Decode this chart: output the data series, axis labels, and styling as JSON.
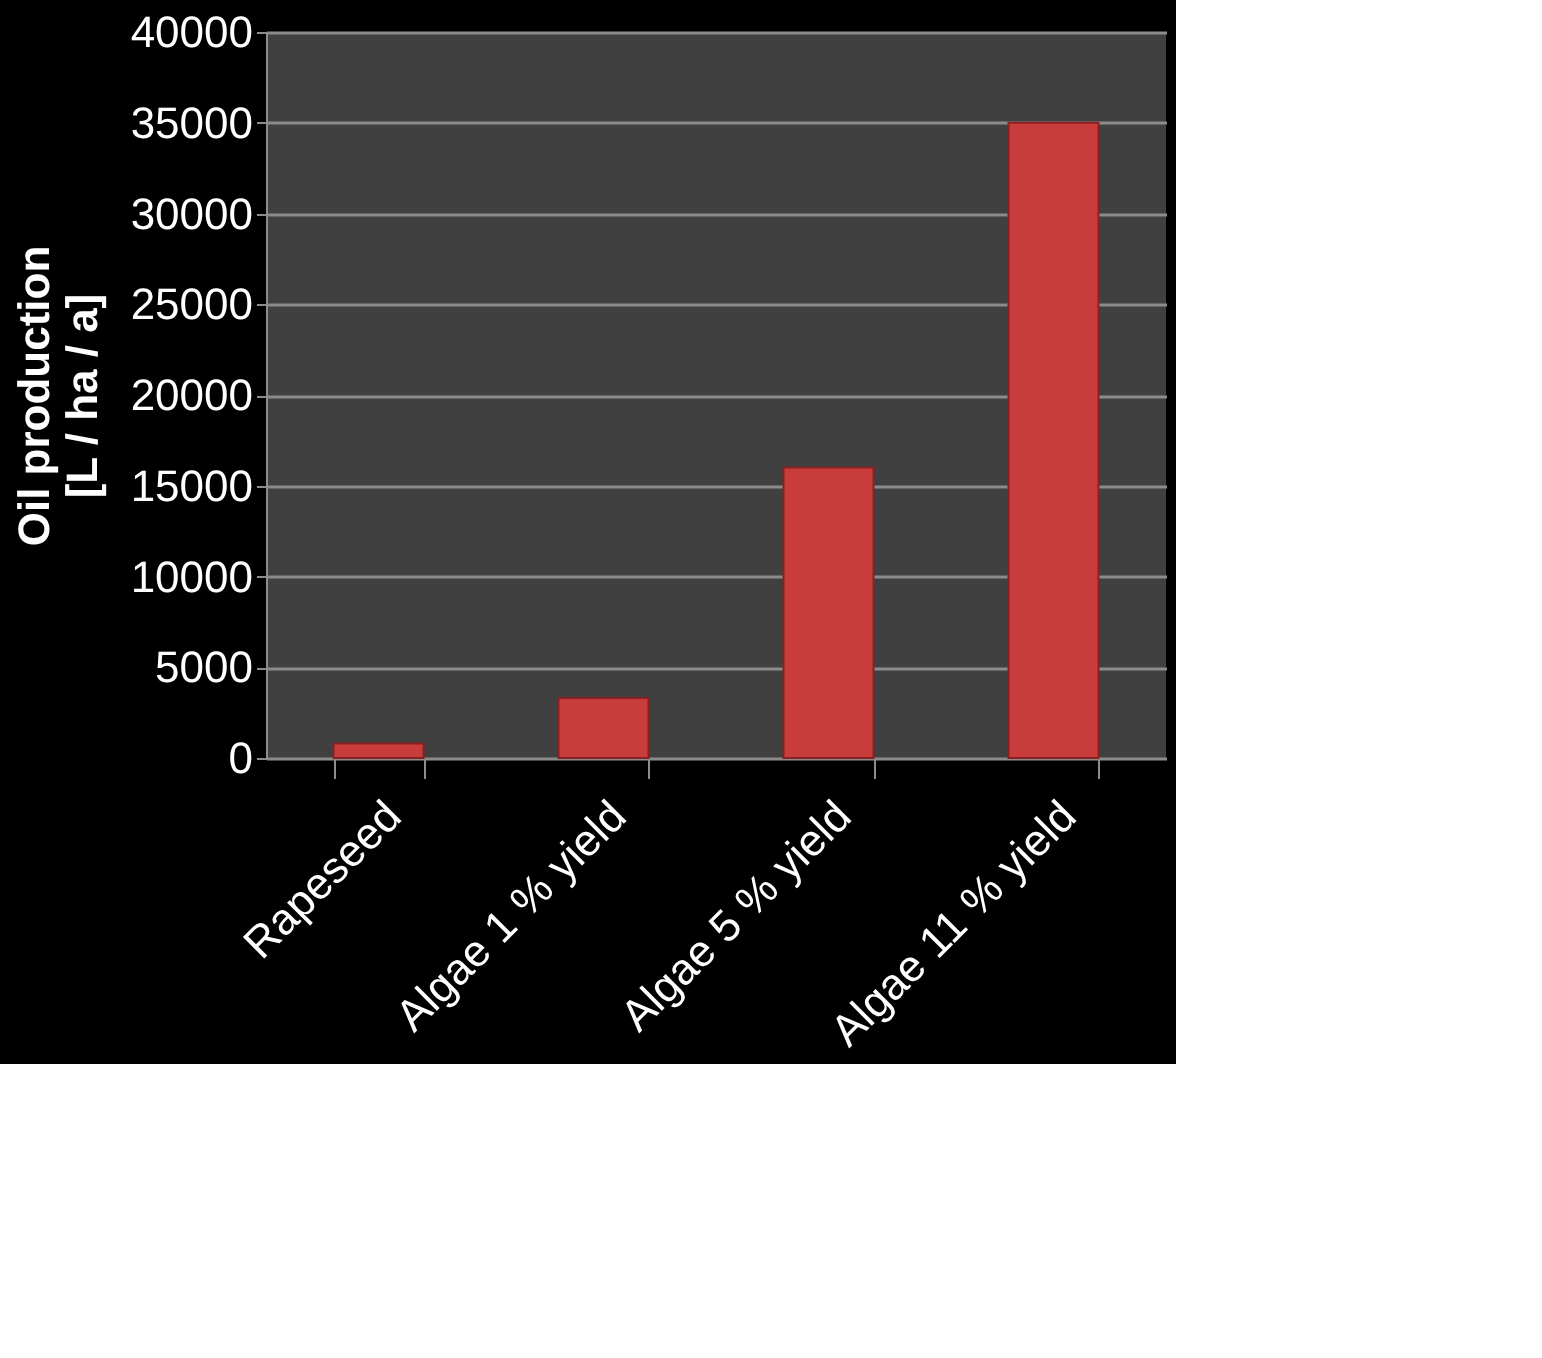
{
  "chart_data": {
    "type": "bar",
    "ylabel": "Oil production\n[L / ha / a]",
    "categories": [
      "Rapeseed",
      "Algae 1 % yield",
      "Algae 5 % yield",
      "Algae 11 % yield"
    ],
    "values": [
      800,
      3300,
      16000,
      35000
    ],
    "color": "#c83c3c",
    "ylim": [
      0,
      40000
    ],
    "yticks": [
      0,
      5000,
      10000,
      15000,
      20000,
      25000,
      30000,
      35000,
      40000
    ],
    "grid": "y"
  }
}
